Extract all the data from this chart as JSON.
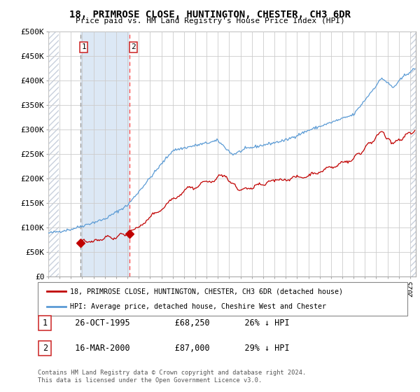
{
  "title": "18, PRIMROSE CLOSE, HUNTINGTON, CHESTER, CH3 6DR",
  "subtitle": "Price paid vs. HM Land Registry's House Price Index (HPI)",
  "legend_line1": "18, PRIMROSE CLOSE, HUNTINGTON, CHESTER, CH3 6DR (detached house)",
  "legend_line2": "HPI: Average price, detached house, Cheshire West and Chester",
  "table_rows": [
    {
      "num": "1",
      "date": "26-OCT-1995",
      "price": "£68,250",
      "hpi": "26% ↓ HPI"
    },
    {
      "num": "2",
      "date": "16-MAR-2000",
      "price": "£87,000",
      "hpi": "29% ↓ HPI"
    }
  ],
  "footer": "Contains HM Land Registry data © Crown copyright and database right 2024.\nThis data is licensed under the Open Government Licence v3.0.",
  "sale_dates": [
    1995.82,
    2000.21
  ],
  "sale_prices": [
    68250,
    87000
  ],
  "vline1_date": 1995.82,
  "vline2_date": 2000.21,
  "vline_labels": [
    "1",
    "2"
  ],
  "ylim": [
    0,
    500000
  ],
  "xlim_start": 1993.0,
  "xlim_end": 2025.5,
  "yticks": [
    0,
    50000,
    100000,
    150000,
    200000,
    250000,
    300000,
    350000,
    400000,
    450000,
    500000
  ],
  "ytick_labels": [
    "£0",
    "£50K",
    "£100K",
    "£150K",
    "£200K",
    "£250K",
    "£300K",
    "£350K",
    "£400K",
    "£450K",
    "£500K"
  ],
  "hpi_color": "#5b9bd5",
  "price_color": "#c00000",
  "vline1_color": "#999999",
  "vline2_color": "#ff5555",
  "shade_color": "#dce8f5",
  "hatch_color": "#c8d0dc",
  "grid_color": "#cccccc",
  "fig_width": 6.0,
  "fig_height": 5.6,
  "dpi": 100
}
